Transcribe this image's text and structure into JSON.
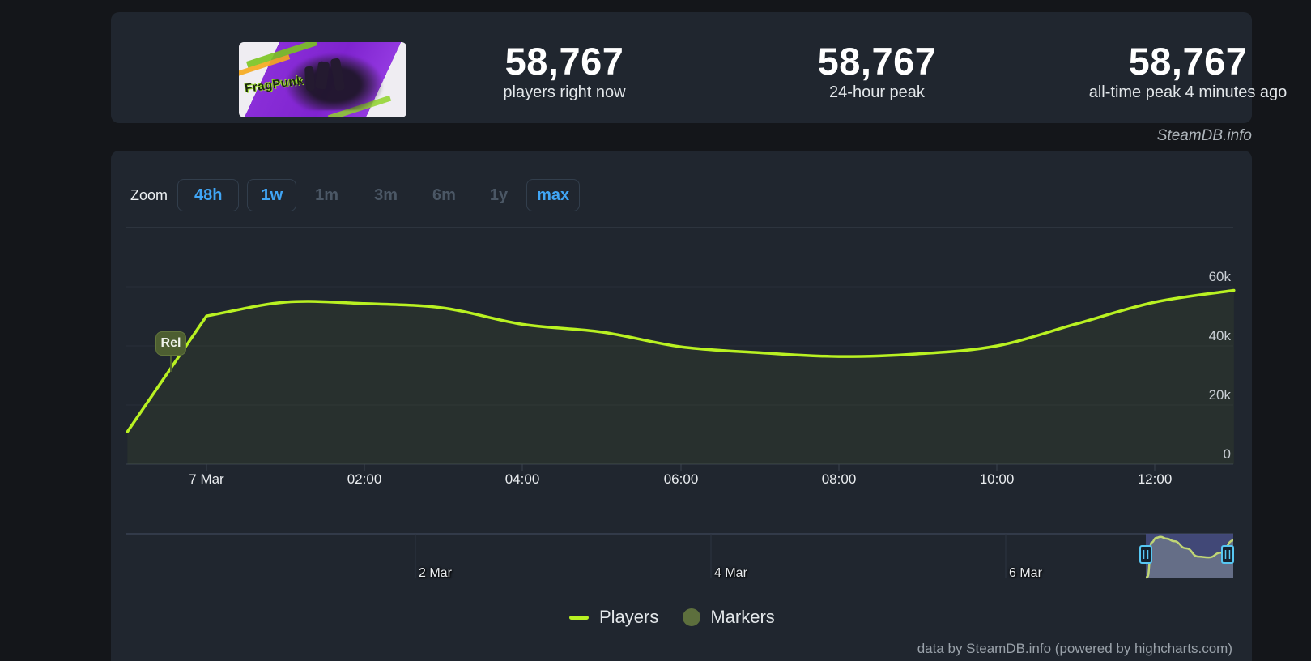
{
  "brand": {
    "watermark": "SteamDB.info"
  },
  "header": {
    "game_name": "FragPunk",
    "capsule_logo": "FragPunk",
    "stats": [
      {
        "value": "58,767",
        "label": "players right now"
      },
      {
        "value": "58,767",
        "label": "24-hour peak"
      },
      {
        "value": "58,767",
        "label": "all-time peak 4 minutes ago"
      }
    ]
  },
  "toolbar": {
    "zoom_label": "Zoom",
    "ranges": [
      {
        "label": "48h",
        "state": "active"
      },
      {
        "label": "1w",
        "state": "active"
      },
      {
        "label": "1m",
        "state": "disabled"
      },
      {
        "label": "3m",
        "state": "disabled"
      },
      {
        "label": "6m",
        "state": "disabled"
      },
      {
        "label": "1y",
        "state": "disabled"
      },
      {
        "label": "max",
        "state": "active"
      }
    ]
  },
  "chart_data": {
    "type": "line",
    "series": [
      {
        "name": "Players",
        "color": "#b9f122",
        "x_labels": [
          "6 Mar 23:00",
          "7 Mar 00:00",
          "01:00",
          "02:00",
          "03:00",
          "04:00",
          "05:00",
          "06:00",
          "07:00",
          "08:00",
          "09:00",
          "10:00",
          "11:00",
          "12:00",
          "13:00"
        ],
        "x_hours": [
          -1,
          0,
          1,
          2,
          3,
          4,
          5,
          6,
          7,
          8,
          9,
          10,
          11,
          12,
          13
        ],
        "values": [
          11000,
          50100,
          54800,
          54300,
          52800,
          47300,
          44700,
          39700,
          37700,
          36400,
          37300,
          40000,
          47400,
          54800,
          58767
        ]
      }
    ],
    "ylim": [
      0,
      80000
    ],
    "yticks": [
      {
        "value": 60000,
        "label": "60k"
      },
      {
        "value": 40000,
        "label": "40k"
      },
      {
        "value": 20000,
        "label": "20k"
      },
      {
        "value": 0,
        "label": "0"
      }
    ],
    "xticks": [
      "7 Mar",
      "02:00",
      "04:00",
      "06:00",
      "08:00",
      "10:00",
      "12:00"
    ],
    "flags": [
      {
        "label": "Rel"
      }
    ],
    "legend": [
      {
        "label": "Players",
        "marker": "line",
        "color": "#b9f122"
      },
      {
        "label": "Markers",
        "marker": "circle",
        "color": "#5d6f3d"
      }
    ],
    "navigator": {
      "xticks": [
        "2 Mar",
        "4 Mar",
        "6 Mar"
      ],
      "preview": [
        [
          0,
          1
        ],
        [
          0.02,
          0.98
        ],
        [
          0.065,
          0.2
        ],
        [
          0.12,
          0.09
        ],
        [
          0.167,
          0.07
        ],
        [
          0.24,
          0.11
        ],
        [
          0.324,
          0.17
        ],
        [
          0.46,
          0.33
        ],
        [
          0.6,
          0.52
        ],
        [
          0.72,
          0.54
        ],
        [
          0.86,
          0.43
        ],
        [
          1,
          0.15
        ]
      ]
    },
    "attribution": "data by SteamDB.info (powered by highcharts.com)"
  }
}
